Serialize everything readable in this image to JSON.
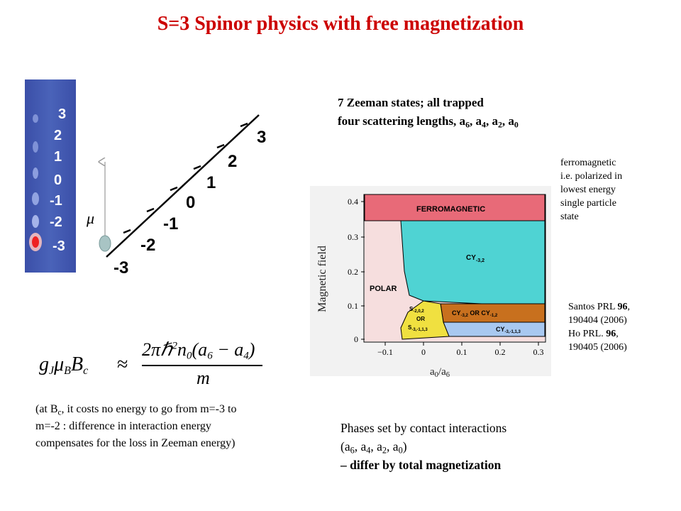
{
  "title": "S=3 Spinor physics with free magnetization",
  "strip_labels": [
    "3",
    "2",
    "1",
    "0",
    "-1",
    "-2",
    "-3"
  ],
  "ladder_labels": [
    "-3",
    "-2",
    "-1",
    "0",
    "1",
    "2",
    "3"
  ],
  "mu_symbol": "μ",
  "zeeman": {
    "line1": "7 Zeeman states; all trapped",
    "line2_prefix": "four scattering lengths, a",
    "s1": "6",
    "c1": ", a",
    "s2": "4",
    "c2": ", a",
    "s3": "2",
    "c3": ", a",
    "s4": "0"
  },
  "ferro_note": [
    "ferromagnetic",
    "i.e. polarized in",
    "lowest energy",
    "single particle",
    "state"
  ],
  "refs": {
    "r1a": "Santos PRL ",
    "r1b": "96",
    "r1c": ",",
    "r1d": "190404 (2006)",
    "r2a": "Ho PRL. ",
    "r2b": "96",
    "r2c": ",",
    "r2d": "190405 (2006)"
  },
  "phase_diagram": {
    "ylabel": "Magnetic field",
    "xlabel_a": "a",
    "xlabel_s1": "0",
    "xlabel_slash": "/a",
    "xlabel_s2": "6",
    "y_ticks": [
      "0.4",
      "0.3",
      "0.2",
      "0.1",
      "0"
    ],
    "x_ticks": [
      "−0.1",
      "0",
      "0.1",
      "0.2",
      "0.3"
    ],
    "regions": {
      "ferro": "FERROMAGNETIC",
      "polar": "POLAR",
      "cy32": "CY",
      "cy32_sub": "-3,2",
      "s_a": "S",
      "s_a_sub": "-2,0,2",
      "s_or": "OR",
      "s_b": "S",
      "s_b_sub": "-3,-1,1,3",
      "cy_or_a": "CY",
      "cy_or_a_sub": "-3,2",
      "cy_or_mid": " OR CY",
      "cy_or_b_sub": "-1,2",
      "cy3113": "CY",
      "cy3113_sub": "-3,-1,1,3"
    }
  },
  "formula": {
    "lhs": "g",
    "lhs_sub1": "J",
    "mu": "μ",
    "mu_sub": "B",
    "b": "B",
    "b_sub": "c",
    "approx": "≈",
    "num_prefix": "2πℏ",
    "num_sup": "2",
    "num_n": "n",
    "num_n_sub": "0",
    "num_paren": "(a",
    "num_s1": "6",
    "num_minus": " − a",
    "num_s2": "4",
    "num_close": ")",
    "denom": "m"
  },
  "bc_note": {
    "a": "(at B",
    "sub": "c",
    "b": ", it costs no energy to go from m=-3 to m=-2 : difference in interaction energy compensates for the loss in Zeeman energy)"
  },
  "phases_text": {
    "line1": "Phases set by contact interactions",
    "line2_a": "(a",
    "s1": "6",
    "c1": ", a",
    "s2": "4",
    "c2": ", a",
    "s3": "2",
    "c3": ", a",
    "s4": "0",
    "close": ")",
    "line3": "– differ by total magnetization"
  }
}
